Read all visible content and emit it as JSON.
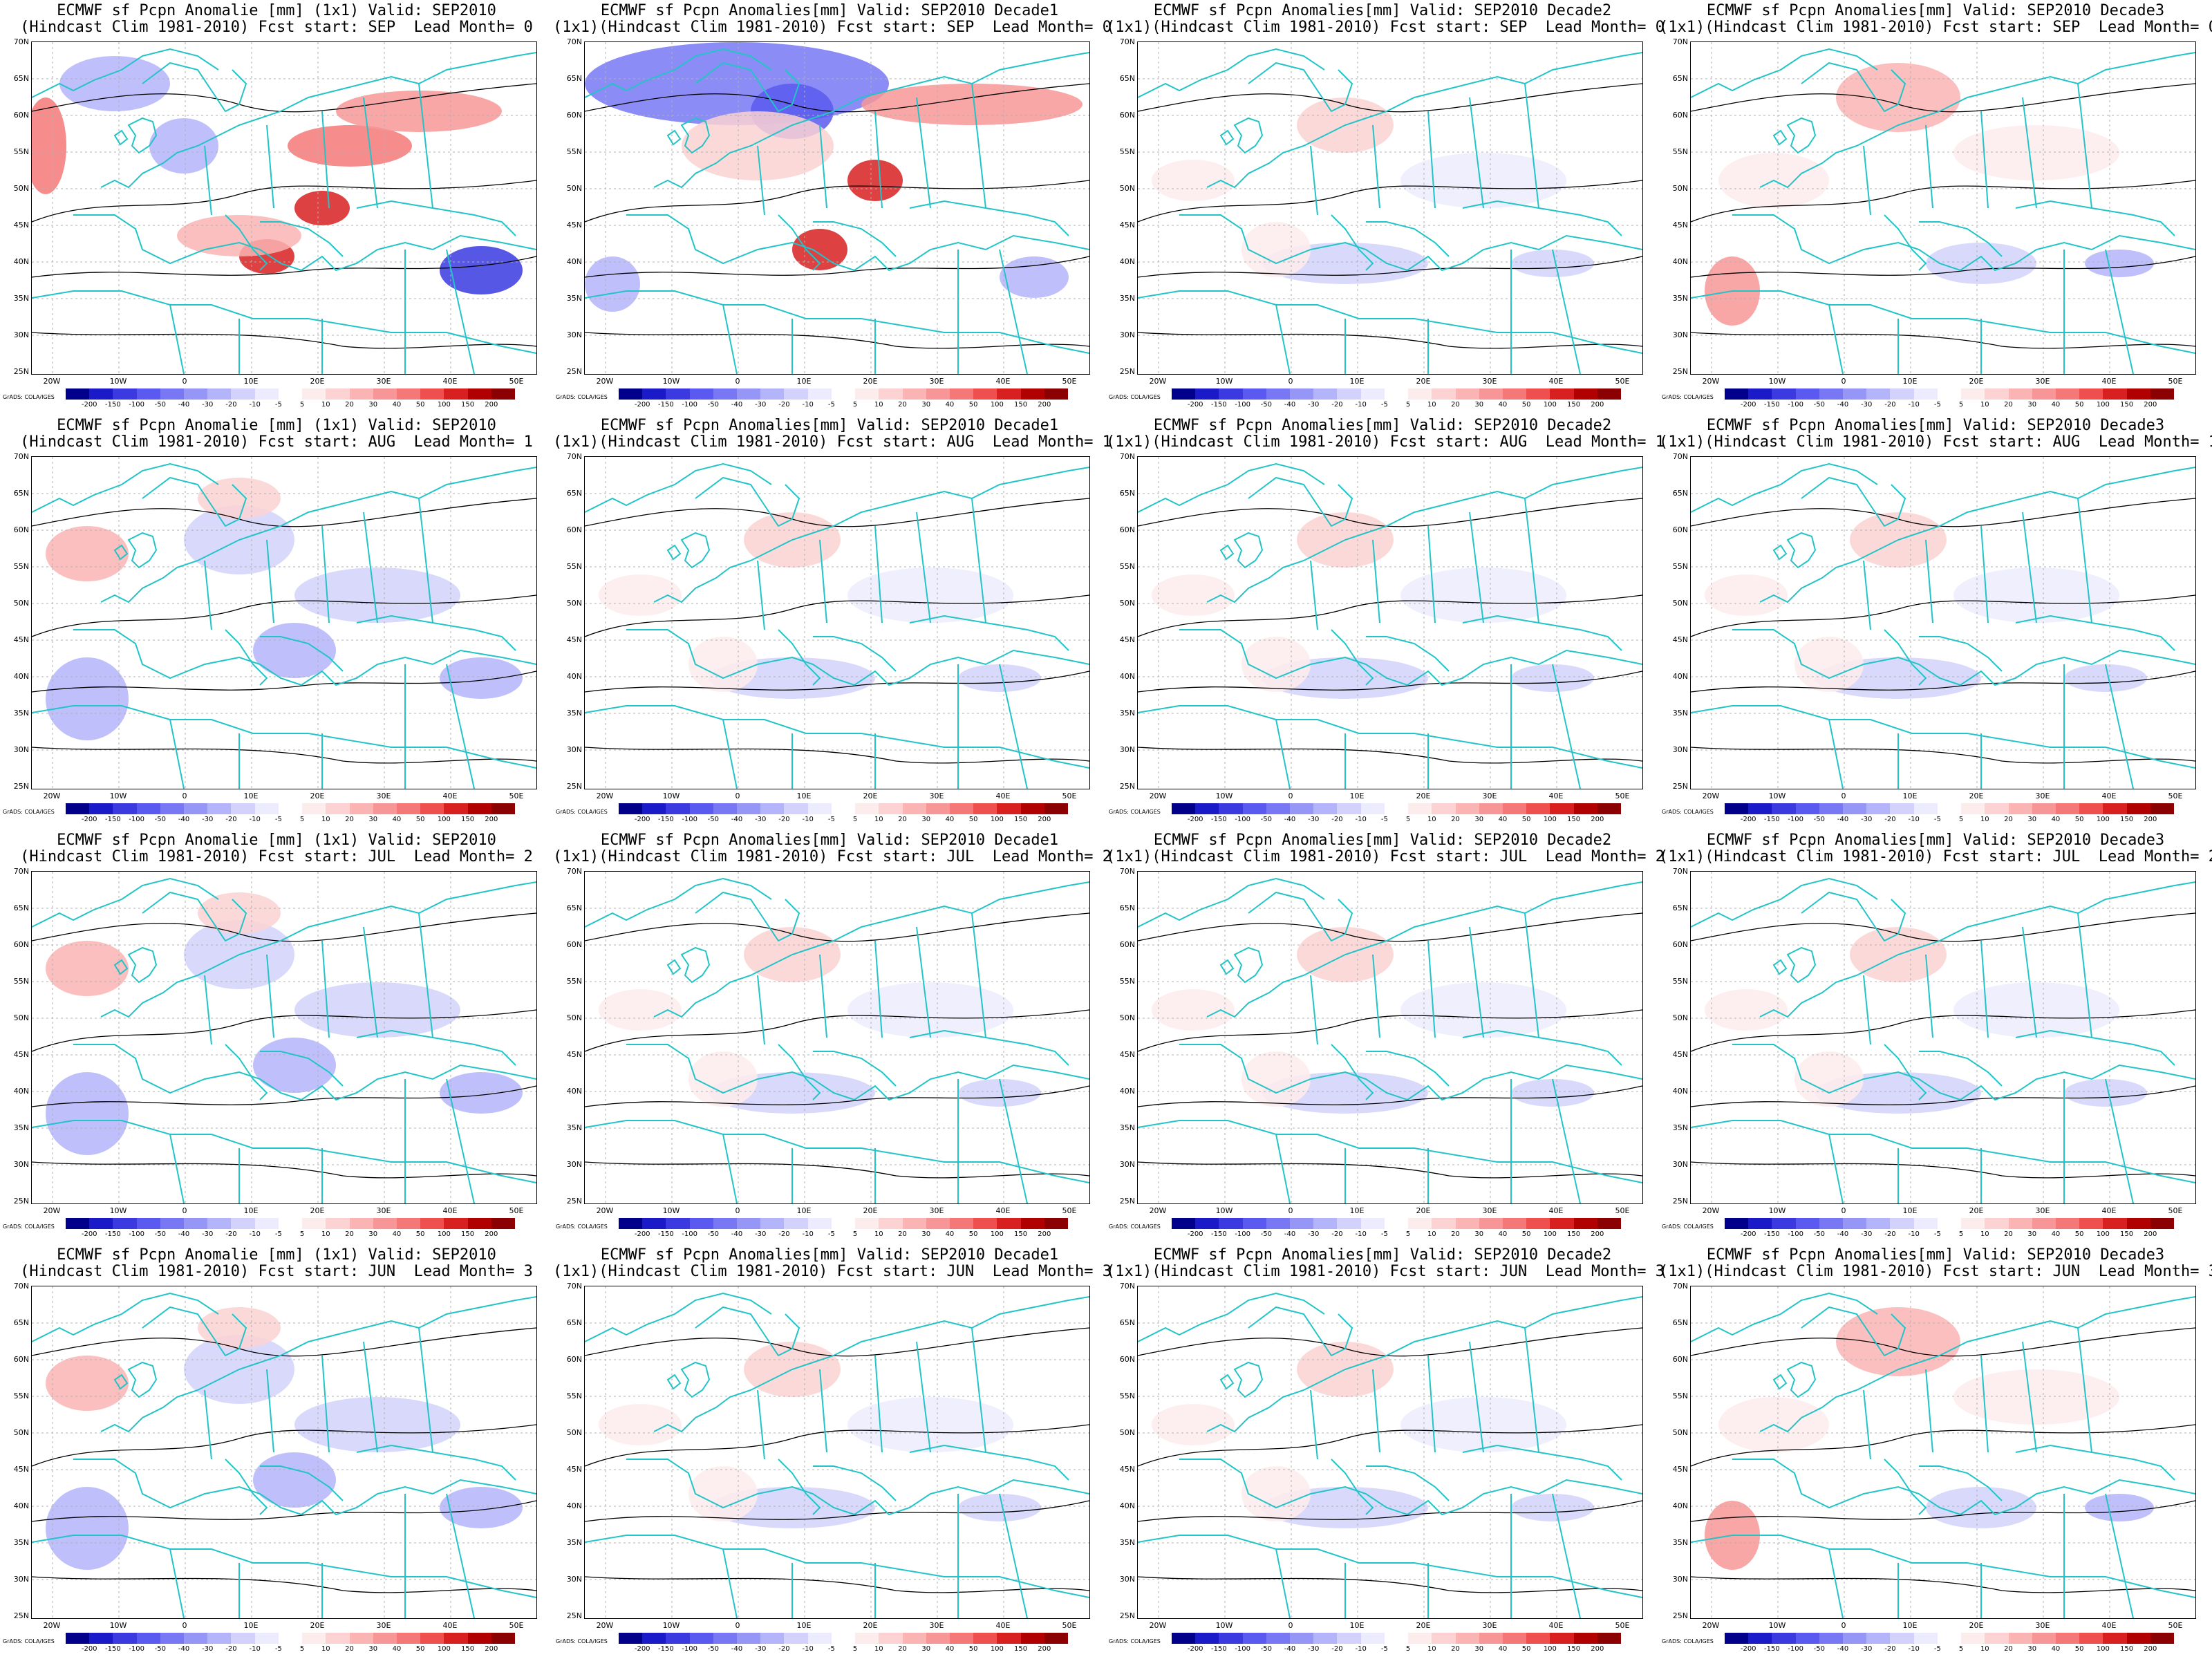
{
  "panels": [
    {
      "title1": "ECMWF sf Pcpn Anomalie [mm] (1x1) Valid: SEP2010",
      "title2": "(Hindcast Clim 1981-2010) Fcst start: SEP  Lead Month= 0",
      "pattern": "strong-mixed"
    },
    {
      "title1": "ECMWF sf Pcpn Anomalies[mm] Valid: SEP2010 Decade1",
      "title2": "(1x1)(Hindcast Clim 1981-2010) Fcst start: SEP  Lead Month= 0",
      "pattern": "blue-north"
    },
    {
      "title1": "ECMWF sf Pcpn Anomalies[mm] Valid: SEP2010 Decade2",
      "title2": "(1x1)(Hindcast Clim 1981-2010) Fcst start: SEP  Lead Month= 0",
      "pattern": "weak"
    },
    {
      "title1": "ECMWF sf Pcpn Anomalies[mm] Valid: SEP2010 Decade3",
      "title2": "(1x1)(Hindcast Clim 1981-2010) Fcst start: SEP  Lead Month= 0",
      "pattern": "weak-red"
    },
    {
      "title1": "ECMWF sf Pcpn Anomalie [mm] (1x1) Valid: SEP2010",
      "title2": "(Hindcast Clim 1981-2010) Fcst start: AUG  Lead Month= 1",
      "pattern": "mixed"
    },
    {
      "title1": "ECMWF sf Pcpn Anomalies[mm] Valid: SEP2010 Decade1",
      "title2": "(1x1)(Hindcast Clim 1981-2010) Fcst start: AUG  Lead Month= 1",
      "pattern": "weak"
    },
    {
      "title1": "ECMWF sf Pcpn Anomalies[mm] Valid: SEP2010 Decade2",
      "title2": "(1x1)(Hindcast Clim 1981-2010) Fcst start: AUG  Lead Month= 1",
      "pattern": "weak"
    },
    {
      "title1": "ECMWF sf Pcpn Anomalies[mm] Valid: SEP2010 Decade3",
      "title2": "(1x1)(Hindcast Clim 1981-2010) Fcst start: AUG  Lead Month= 1",
      "pattern": "weak"
    },
    {
      "title1": "ECMWF sf Pcpn Anomalie [mm] (1x1) Valid: SEP2010",
      "title2": "(Hindcast Clim 1981-2010) Fcst start: JUL  Lead Month= 2",
      "pattern": "mixed"
    },
    {
      "title1": "ECMWF sf Pcpn Anomalies[mm] Valid: SEP2010 Decade1",
      "title2": "(1x1)(Hindcast Clim 1981-2010) Fcst start: JUL  Lead Month= 2",
      "pattern": "weak"
    },
    {
      "title1": "ECMWF sf Pcpn Anomalies[mm] Valid: SEP2010 Decade2",
      "title2": "(1x1)(Hindcast Clim 1981-2010) Fcst start: JUL  Lead Month= 2",
      "pattern": "weak"
    },
    {
      "title1": "ECMWF sf Pcpn Anomalies[mm] Valid: SEP2010 Decade3",
      "title2": "(1x1)(Hindcast Clim 1981-2010) Fcst start: JUL  Lead Month= 2",
      "pattern": "weak"
    },
    {
      "title1": "ECMWF sf Pcpn Anomalie [mm] (1x1) Valid: SEP2010",
      "title2": "(Hindcast Clim 1981-2010) Fcst start: JUN  Lead Month= 3",
      "pattern": "mixed"
    },
    {
      "title1": "ECMWF sf Pcpn Anomalies[mm] Valid: SEP2010 Decade1",
      "title2": "(1x1)(Hindcast Clim 1981-2010) Fcst start: JUN  Lead Month= 3",
      "pattern": "weak"
    },
    {
      "title1": "ECMWF sf Pcpn Anomalies[mm] Valid: SEP2010 Decade2",
      "title2": "(1x1)(Hindcast Clim 1981-2010) Fcst start: JUN  Lead Month= 3",
      "pattern": "weak"
    },
    {
      "title1": "ECMWF sf Pcpn Anomalies[mm] Valid: SEP2010 Decade3",
      "title2": "(1x1)(Hindcast Clim 1981-2010) Fcst start: JUN  Lead Month= 3",
      "pattern": "weak-red"
    }
  ],
  "lat_labels": [
    "70N",
    "65N",
    "60N",
    "55N",
    "50N",
    "45N",
    "40N",
    "35N",
    "30N",
    "25N"
  ],
  "lon_labels": [
    "20W",
    "10W",
    "0",
    "10E",
    "20E",
    "30E",
    "40E",
    "50E"
  ],
  "colorbar": {
    "labels": [
      "-200",
      "-150",
      "-100",
      "-50",
      "-40",
      "-30",
      "-20",
      "-10",
      "-5",
      "5",
      "10",
      "20",
      "30",
      "40",
      "50",
      "100",
      "150",
      "200"
    ],
    "colors": [
      "#00008b",
      "#1a1ac8",
      "#3a3ae0",
      "#5a5af0",
      "#7878f5",
      "#9696f7",
      "#b4b4fa",
      "#d2d2fc",
      "#ececfe",
      "#ffffff",
      "#fdecec",
      "#fcd2d2",
      "#fab4b4",
      "#f79696",
      "#f57878",
      "#ef4f4f",
      "#d82020",
      "#b00000",
      "#8b0000"
    ]
  },
  "credit": "GrADS: COLA/IGES",
  "colors": {
    "coast": "#22c4c8",
    "contour": "#000000",
    "grid": "#b0b0b0"
  }
}
